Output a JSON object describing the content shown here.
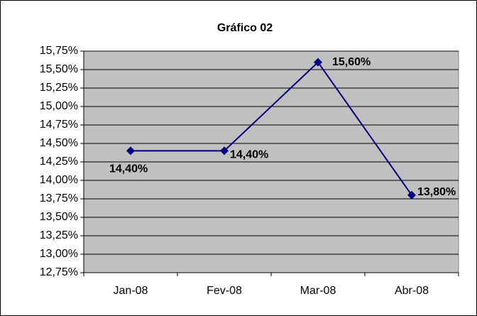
{
  "chart_data": {
    "type": "line",
    "title": "Gráfico 02",
    "categories": [
      "Jan-08",
      "Fev-08",
      "Mar-08",
      "Abr-08"
    ],
    "values": [
      14.4,
      14.4,
      15.6,
      13.8
    ],
    "value_labels": [
      "14,40%",
      "14,40%",
      "15,60%",
      "13,80%"
    ],
    "color": "#000080",
    "ylim": [
      12.75,
      15.75
    ],
    "yticks": [
      {
        "value": 12.75,
        "label": "12,75%"
      },
      {
        "value": 13.0,
        "label": "13,00%"
      },
      {
        "value": 13.25,
        "label": "13,25%"
      },
      {
        "value": 13.5,
        "label": "13,50%"
      },
      {
        "value": 13.75,
        "label": "13,75%"
      },
      {
        "value": 14.0,
        "label": "14,00%"
      },
      {
        "value": 14.25,
        "label": "14,25%"
      },
      {
        "value": 14.5,
        "label": "14,50%"
      },
      {
        "value": 14.75,
        "label": "14,75%"
      },
      {
        "value": 15.0,
        "label": "15,00%"
      },
      {
        "value": 15.25,
        "label": "15,25%"
      },
      {
        "value": 15.5,
        "label": "15,50%"
      },
      {
        "value": 15.75,
        "label": "15,75%"
      }
    ],
    "grid": true
  }
}
